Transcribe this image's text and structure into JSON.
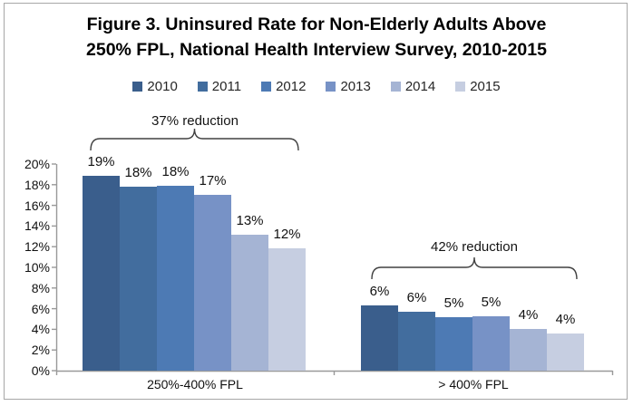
{
  "chart_data": {
    "type": "bar",
    "title": "Figure 3. Uninsured Rate for Non-Elderly Adults Above 250% FPL, National Health Interview Survey, 2010-2015",
    "title_lines": [
      "Figure 3. Uninsured Rate for Non-Elderly Adults Above",
      "250% FPL, National Health Interview Survey, 2010-2015"
    ],
    "categories": [
      "250%-400% FPL",
      "> 400% FPL"
    ],
    "legend": [
      "2010",
      "2011",
      "2012",
      "2013",
      "2014",
      "2015"
    ],
    "series": [
      {
        "name": "2010",
        "color": "#3A5E8C",
        "values": [
          19,
          6
        ],
        "data_labels": [
          "19%",
          "6%"
        ]
      },
      {
        "name": "2011",
        "color": "#426D9E",
        "values": [
          18,
          6
        ],
        "data_labels": [
          "18%",
          "6%"
        ]
      },
      {
        "name": "2012",
        "color": "#4D7AB4",
        "values": [
          18,
          5
        ],
        "data_labels": [
          "18%",
          "5%"
        ]
      },
      {
        "name": "2013",
        "color": "#7792C6",
        "values": [
          17,
          5
        ],
        "data_labels": [
          "17%",
          "5%"
        ]
      },
      {
        "name": "2014",
        "color": "#A5B4D4",
        "values": [
          13,
          4
        ],
        "data_labels": [
          "13%",
          "4%"
        ]
      },
      {
        "name": "2015",
        "color": "#C6CEE1",
        "values": [
          12,
          4
        ],
        "data_labels": [
          "12%",
          "4%"
        ]
      }
    ],
    "bar_heights_pct_estimate": [
      [
        18.9,
        17.8,
        17.9,
        17.0,
        13.2,
        11.8
      ],
      [
        6.3,
        5.7,
        5.2,
        5.3,
        4.0,
        3.6
      ]
    ],
    "annotations": [
      {
        "text": "37% reduction",
        "category": "250%-400% FPL"
      },
      {
        "text": "42% reduction",
        "category": "> 400% FPL"
      }
    ],
    "y_axis": {
      "min": 0,
      "max": 20,
      "step": 2,
      "tick_labels": [
        "0%",
        "2%",
        "4%",
        "6%",
        "8%",
        "10%",
        "12%",
        "14%",
        "16%",
        "18%",
        "20%"
      ]
    },
    "ylim": [
      0,
      20
    ],
    "grid": false,
    "legend_position": "top",
    "axis_color": "#999999",
    "annotation_color": "#404040"
  }
}
